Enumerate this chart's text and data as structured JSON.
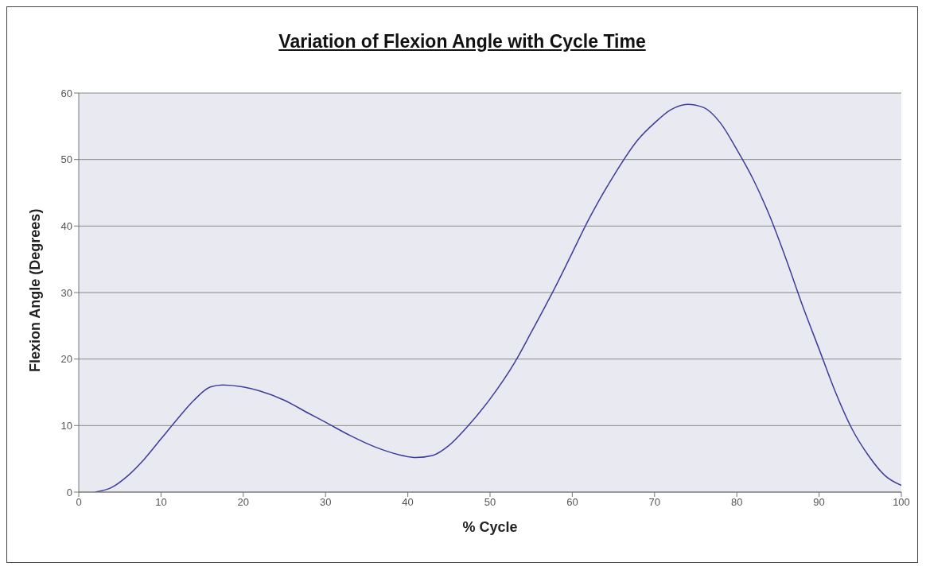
{
  "chart_data": {
    "type": "line",
    "title": "Variation of Flexion Angle with Cycle Time",
    "xlabel": "% Cycle",
    "ylabel": "Flexion Angle (Degrees)",
    "x": [
      2,
      4,
      6,
      8,
      10,
      12,
      14,
      16,
      17.5,
      20,
      22,
      25,
      28,
      30,
      33,
      36,
      39,
      41,
      43,
      45,
      47,
      50,
      53,
      55,
      58,
      60,
      62,
      65,
      68,
      70,
      72,
      74,
      76,
      78,
      80,
      82,
      84,
      86,
      88,
      90,
      92,
      94,
      96,
      98,
      100
    ],
    "series": [
      {
        "color": "#3c3c9a",
        "values": [
          0,
          0.7,
          2.5,
          5,
          8,
          11,
          13.8,
          15.8,
          16.1,
          15.8,
          15.2,
          13.8,
          11.8,
          10.5,
          8.5,
          6.8,
          5.6,
          5.2,
          5.5,
          7,
          9.5,
          14,
          19.5,
          24,
          31,
          36,
          41,
          47.5,
          53,
          55.5,
          57.5,
          58.3,
          57.8,
          55.5,
          51.5,
          47,
          41.5,
          35,
          28,
          21.5,
          15,
          9.5,
          5.5,
          2.5,
          1
        ]
      }
    ],
    "xlim": [
      0,
      100
    ],
    "xticks": [
      0,
      10,
      20,
      30,
      40,
      50,
      60,
      70,
      80,
      90,
      100
    ],
    "ylim": [
      0,
      60
    ],
    "yticks": [
      0,
      10,
      20,
      30,
      40,
      50,
      60
    ],
    "grid": "y"
  }
}
